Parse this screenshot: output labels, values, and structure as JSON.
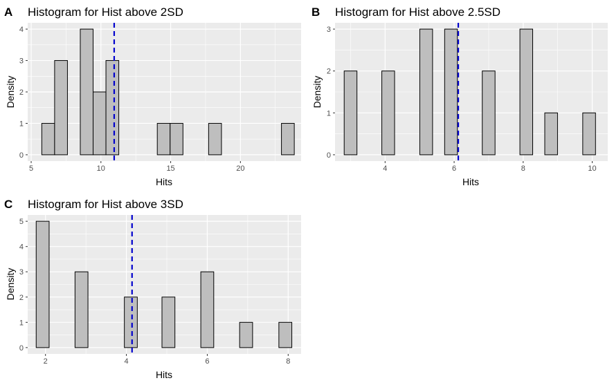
{
  "chart_data": [
    {
      "panel": "A",
      "type": "bar",
      "title": "Histogram for Hist above 2SD",
      "xlabel": "Hits",
      "ylabel": "Density",
      "xlim": [
        4.75,
        24.35
      ],
      "ylim": [
        -0.2,
        4.2
      ],
      "xticks": [
        5,
        10,
        15,
        20
      ],
      "yticks": [
        0,
        1,
        2,
        3,
        4
      ],
      "bin_width": 0.92,
      "bins": [
        {
          "x": 6.22,
          "count": 1
        },
        {
          "x": 7.14,
          "count": 3
        },
        {
          "x": 8.98,
          "count": 4
        },
        {
          "x": 9.9,
          "count": 2
        },
        {
          "x": 10.82,
          "count": 3
        },
        {
          "x": 14.5,
          "count": 1
        },
        {
          "x": 15.42,
          "count": 1
        },
        {
          "x": 18.18,
          "count": 1
        },
        {
          "x": 23.4,
          "count": 1
        }
      ],
      "mean_line": 10.95,
      "colors": {
        "bar_fill": "#bebebe",
        "bar_stroke": "#000000",
        "mean_line": "#0000cd",
        "panel_bg": "#ebebeb",
        "grid": "#ffffff"
      }
    },
    {
      "panel": "B",
      "type": "bar",
      "title": "Histogram for Hist above 2.5SD",
      "xlabel": "Hits",
      "ylabel": "Density",
      "xlim": [
        2.55,
        10.45
      ],
      "ylim": [
        -0.15,
        3.15
      ],
      "xticks": [
        4,
        6,
        8,
        10
      ],
      "yticks": [
        0,
        1,
        2,
        3
      ],
      "bin_width": 0.37,
      "bins": [
        {
          "x": 3.0,
          "count": 2
        },
        {
          "x": 4.09,
          "count": 2
        },
        {
          "x": 5.19,
          "count": 3
        },
        {
          "x": 5.91,
          "count": 3
        },
        {
          "x": 7.0,
          "count": 2
        },
        {
          "x": 8.09,
          "count": 3
        },
        {
          "x": 8.81,
          "count": 1
        },
        {
          "x": 9.91,
          "count": 1
        }
      ],
      "mean_line": 6.12,
      "colors": {
        "bar_fill": "#bebebe",
        "bar_stroke": "#000000",
        "mean_line": "#0000cd",
        "panel_bg": "#ebebeb",
        "grid": "#ffffff"
      }
    },
    {
      "panel": "C",
      "type": "bar",
      "title": "Histogram for Hist above 3SD",
      "xlabel": "Hits",
      "ylabel": "Density",
      "xlim": [
        1.56,
        8.32
      ],
      "ylim": [
        -0.25,
        5.25
      ],
      "xticks": [
        2,
        4,
        6,
        8
      ],
      "yticks": [
        0,
        1,
        2,
        3,
        4,
        5
      ],
      "bin_width": 0.32,
      "bins": [
        {
          "x": 1.93,
          "count": 5
        },
        {
          "x": 2.89,
          "count": 3
        },
        {
          "x": 4.11,
          "count": 2
        },
        {
          "x": 5.04,
          "count": 2
        },
        {
          "x": 6.0,
          "count": 3
        },
        {
          "x": 6.96,
          "count": 1
        },
        {
          "x": 7.93,
          "count": 1
        }
      ],
      "mean_line": 4.14,
      "colors": {
        "bar_fill": "#bebebe",
        "bar_stroke": "#000000",
        "mean_line": "#0000cd",
        "panel_bg": "#ebebeb",
        "grid": "#ffffff"
      }
    }
  ]
}
